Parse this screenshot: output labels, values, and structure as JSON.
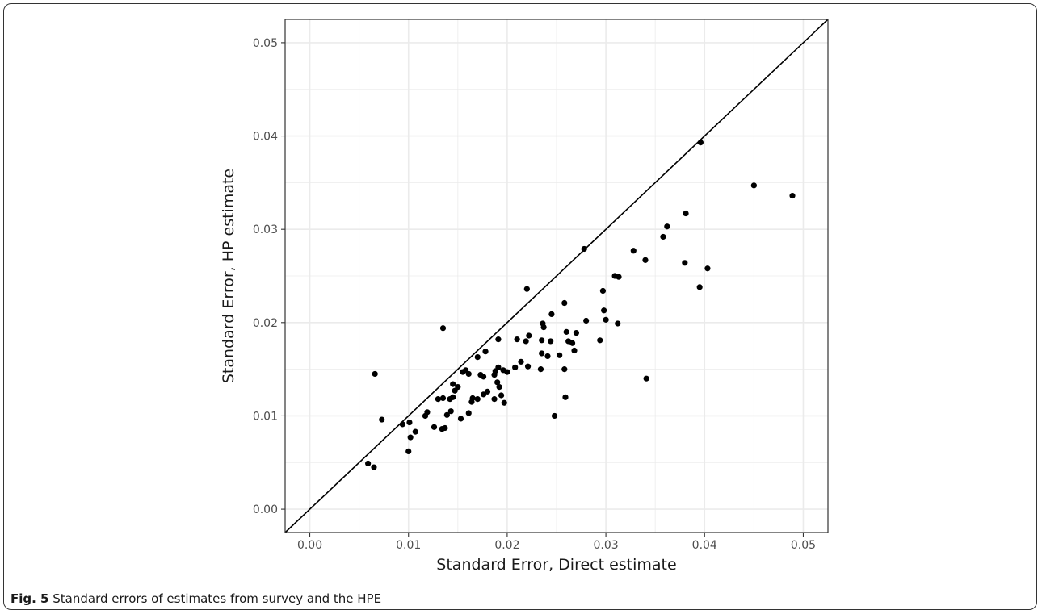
{
  "caption": {
    "label": "Fig. 5",
    "text": "Standard errors of estimates from survey and the HPE"
  },
  "chart_data": {
    "type": "scatter",
    "title": "",
    "xlabel": "Standard Error, Direct estimate",
    "ylabel": "Standard Error, HP estimate",
    "xlim": [
      -0.0025,
      0.0525
    ],
    "ylim": [
      -0.0025,
      0.0525
    ],
    "xticks": [
      "0.00",
      "0.01",
      "0.02",
      "0.03",
      "0.04",
      "0.05"
    ],
    "yticks": [
      "0.00",
      "0.01",
      "0.02",
      "0.03",
      "0.04",
      "0.05"
    ],
    "grid": true,
    "reference_line": "y = x",
    "colors": {
      "point": "#000000",
      "grid": "#ebebeb",
      "panel_border": "#333333"
    },
    "points": [
      {
        "x": 0.0059,
        "y": 0.0049
      },
      {
        "x": 0.0065,
        "y": 0.0045
      },
      {
        "x": 0.0066,
        "y": 0.0145
      },
      {
        "x": 0.0073,
        "y": 0.0096
      },
      {
        "x": 0.0094,
        "y": 0.0091
      },
      {
        "x": 0.0101,
        "y": 0.0093
      },
      {
        "x": 0.0102,
        "y": 0.0077
      },
      {
        "x": 0.01,
        "y": 0.0062
      },
      {
        "x": 0.0107,
        "y": 0.0083
      },
      {
        "x": 0.0117,
        "y": 0.01
      },
      {
        "x": 0.0119,
        "y": 0.0104
      },
      {
        "x": 0.0126,
        "y": 0.0088
      },
      {
        "x": 0.013,
        "y": 0.0118
      },
      {
        "x": 0.0134,
        "y": 0.0086
      },
      {
        "x": 0.0135,
        "y": 0.0194
      },
      {
        "x": 0.0135,
        "y": 0.0119
      },
      {
        "x": 0.0137,
        "y": 0.0087
      },
      {
        "x": 0.0139,
        "y": 0.0101
      },
      {
        "x": 0.0142,
        "y": 0.0118
      },
      {
        "x": 0.0143,
        "y": 0.0105
      },
      {
        "x": 0.0145,
        "y": 0.012
      },
      {
        "x": 0.0145,
        "y": 0.0134
      },
      {
        "x": 0.0147,
        "y": 0.0127
      },
      {
        "x": 0.015,
        "y": 0.0131
      },
      {
        "x": 0.0153,
        "y": 0.0097
      },
      {
        "x": 0.0155,
        "y": 0.0147
      },
      {
        "x": 0.0158,
        "y": 0.0149
      },
      {
        "x": 0.0161,
        "y": 0.0145
      },
      {
        "x": 0.0161,
        "y": 0.0103
      },
      {
        "x": 0.0164,
        "y": 0.0115
      },
      {
        "x": 0.0165,
        "y": 0.0119
      },
      {
        "x": 0.017,
        "y": 0.0118
      },
      {
        "x": 0.017,
        "y": 0.0163
      },
      {
        "x": 0.0173,
        "y": 0.0144
      },
      {
        "x": 0.0176,
        "y": 0.0123
      },
      {
        "x": 0.0176,
        "y": 0.0142
      },
      {
        "x": 0.0178,
        "y": 0.0169
      },
      {
        "x": 0.018,
        "y": 0.0126
      },
      {
        "x": 0.0187,
        "y": 0.0118
      },
      {
        "x": 0.0187,
        "y": 0.0144
      },
      {
        "x": 0.0188,
        "y": 0.0148
      },
      {
        "x": 0.019,
        "y": 0.0136
      },
      {
        "x": 0.0191,
        "y": 0.0182
      },
      {
        "x": 0.0191,
        "y": 0.0152
      },
      {
        "x": 0.0192,
        "y": 0.0131
      },
      {
        "x": 0.0194,
        "y": 0.0122
      },
      {
        "x": 0.0196,
        "y": 0.0149
      },
      {
        "x": 0.0197,
        "y": 0.0114
      },
      {
        "x": 0.02,
        "y": 0.0147
      },
      {
        "x": 0.0208,
        "y": 0.0152
      },
      {
        "x": 0.021,
        "y": 0.0182
      },
      {
        "x": 0.0214,
        "y": 0.0158
      },
      {
        "x": 0.0219,
        "y": 0.018
      },
      {
        "x": 0.022,
        "y": 0.0236
      },
      {
        "x": 0.0221,
        "y": 0.0153
      },
      {
        "x": 0.0222,
        "y": 0.0186
      },
      {
        "x": 0.0234,
        "y": 0.015
      },
      {
        "x": 0.0235,
        "y": 0.0167
      },
      {
        "x": 0.0235,
        "y": 0.0181
      },
      {
        "x": 0.0236,
        "y": 0.0199
      },
      {
        "x": 0.0237,
        "y": 0.0195
      },
      {
        "x": 0.0241,
        "y": 0.0164
      },
      {
        "x": 0.0244,
        "y": 0.018
      },
      {
        "x": 0.0245,
        "y": 0.0209
      },
      {
        "x": 0.0248,
        "y": 0.01
      },
      {
        "x": 0.0253,
        "y": 0.0165
      },
      {
        "x": 0.0258,
        "y": 0.015
      },
      {
        "x": 0.0258,
        "y": 0.0221
      },
      {
        "x": 0.0259,
        "y": 0.012
      },
      {
        "x": 0.026,
        "y": 0.019
      },
      {
        "x": 0.0262,
        "y": 0.018
      },
      {
        "x": 0.0266,
        "y": 0.0178
      },
      {
        "x": 0.0268,
        "y": 0.017
      },
      {
        "x": 0.027,
        "y": 0.0189
      },
      {
        "x": 0.0278,
        "y": 0.0279
      },
      {
        "x": 0.028,
        "y": 0.0202
      },
      {
        "x": 0.0294,
        "y": 0.0181
      },
      {
        "x": 0.0297,
        "y": 0.0234
      },
      {
        "x": 0.0298,
        "y": 0.0213
      },
      {
        "x": 0.03,
        "y": 0.0203
      },
      {
        "x": 0.0309,
        "y": 0.025
      },
      {
        "x": 0.0312,
        "y": 0.0199
      },
      {
        "x": 0.0313,
        "y": 0.0249
      },
      {
        "x": 0.0328,
        "y": 0.0277
      },
      {
        "x": 0.034,
        "y": 0.0267
      },
      {
        "x": 0.0341,
        "y": 0.014
      },
      {
        "x": 0.0358,
        "y": 0.0292
      },
      {
        "x": 0.0362,
        "y": 0.0303
      },
      {
        "x": 0.038,
        "y": 0.0264
      },
      {
        "x": 0.0381,
        "y": 0.0317
      },
      {
        "x": 0.0395,
        "y": 0.0238
      },
      {
        "x": 0.0396,
        "y": 0.0393
      },
      {
        "x": 0.0403,
        "y": 0.0258
      },
      {
        "x": 0.045,
        "y": 0.0347
      },
      {
        "x": 0.0489,
        "y": 0.0336
      }
    ]
  }
}
